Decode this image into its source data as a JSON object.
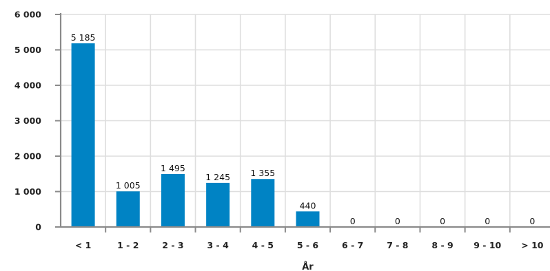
{
  "chart_data": {
    "type": "bar",
    "title": "",
    "xlabel": "År",
    "ylabel": "",
    "categories": [
      "< 1",
      "1 - 2",
      "2 - 3",
      "3 - 4",
      "4 - 5",
      "5 - 6",
      "6 - 7",
      "7 - 8",
      "8 - 9",
      "9 - 10",
      "> 10"
    ],
    "values": [
      5185,
      1005,
      1495,
      1245,
      1355,
      440,
      0,
      0,
      0,
      0,
      0
    ],
    "data_labels": [
      "5 185",
      "1 005",
      "1 495",
      "1 245",
      "1 355",
      "440",
      "0",
      "0",
      "0",
      "0",
      "0"
    ],
    "ylim": [
      0,
      6000
    ],
    "yticks": [
      0,
      1000,
      2000,
      3000,
      4000,
      5000,
      6000
    ],
    "ytick_labels": [
      "0",
      "1 000",
      "2 000",
      "3 000",
      "4 000",
      "5 000",
      "6 000"
    ],
    "grid": true,
    "legend": "none",
    "colors": {
      "bar": "#0083c4",
      "grid": "#dedede",
      "axis": "#8a8a8a"
    }
  }
}
